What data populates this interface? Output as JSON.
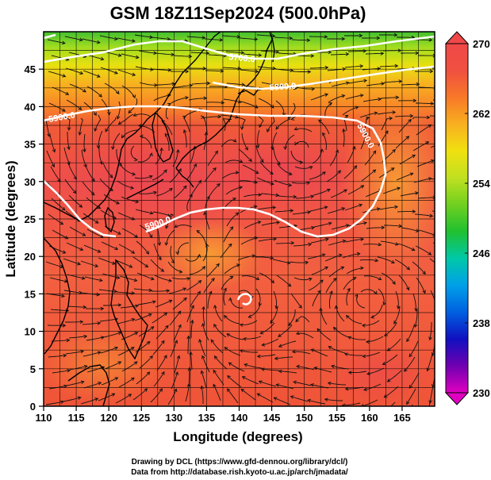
{
  "chart_data": {
    "type": "heatmap",
    "title": "GSM 18Z11Sep2024 (500.0hPa)",
    "xlabel": "Longitude (degrees)",
    "ylabel": "Latitude  (degrees)",
    "xlim": [
      110,
      170
    ],
    "ylim": [
      0,
      50
    ],
    "xticks": [
      "110",
      "115",
      "120",
      "125",
      "130",
      "135",
      "140",
      "145",
      "150",
      "155",
      "160",
      "165"
    ],
    "yticks": [
      "0",
      "5",
      "10",
      "15",
      "20",
      "25",
      "30",
      "35",
      "40",
      "45"
    ],
    "grid": true,
    "colorbar": {
      "range": [
        230,
        270
      ],
      "ticks": [
        "270",
        "262",
        "254",
        "246",
        "238",
        "230"
      ],
      "colors": [
        "#e000c0",
        "#7000b0",
        "#1010c0",
        "#0060e0",
        "#00a0e8",
        "#00c8a8",
        "#20c030",
        "#70d020",
        "#c0e020",
        "#f0e010",
        "#f8b020",
        "#f87828",
        "#f05040",
        "#f04848"
      ]
    },
    "contours": [
      {
        "label": "5700.0"
      },
      {
        "label": "5800.0"
      },
      {
        "label": "5900.0"
      },
      {
        "label": "5900.0"
      },
      {
        "label": "5900.0"
      }
    ]
  },
  "credits": {
    "line1": "Drawing by DCL (https://www.gfd-dennou.org/library/dcl/)",
    "line2": "Data from http://database.rish.kyoto-u.ac.jp/arch/jmadata/"
  }
}
